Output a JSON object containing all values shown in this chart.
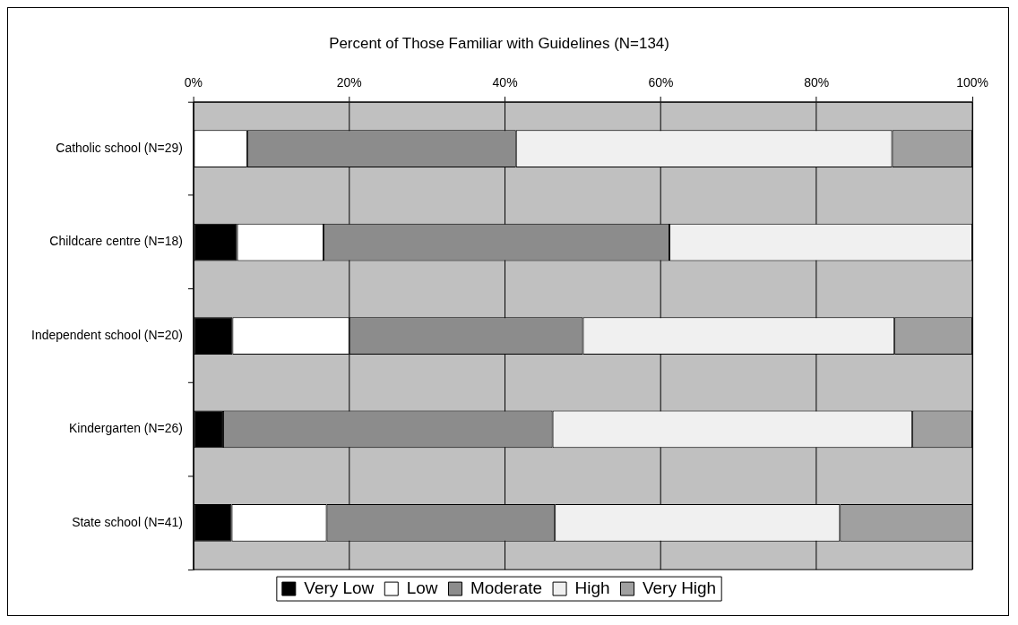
{
  "chart_data": {
    "type": "bar",
    "orientation": "horizontal",
    "stacked": true,
    "title": "Percent of Those Familiar with Guidelines (N=134)",
    "categories": [
      "Catholic school (N=29)",
      "Childcare centre (N=18)",
      "Independent school (N=20)",
      "Kindergarten (N=26)",
      "State school (N=41)"
    ],
    "series": [
      {
        "name": "Very Low",
        "color": "#000000",
        "values": [
          0,
          5.6,
          5,
          3.8,
          4.9
        ]
      },
      {
        "name": "Low",
        "color": "#ffffff",
        "values": [
          6.9,
          11.1,
          15,
          0,
          12.2
        ]
      },
      {
        "name": "Moderate",
        "color": "#8c8c8c",
        "values": [
          34.5,
          44.4,
          30,
          42.3,
          29.3
        ]
      },
      {
        "name": "High",
        "color": "#f0f0f0",
        "values": [
          48.3,
          38.9,
          40,
          46.2,
          36.6
        ]
      },
      {
        "name": "Very High",
        "color": "#a0a0a0",
        "values": [
          10.3,
          0,
          10,
          7.7,
          17.1
        ]
      }
    ],
    "xlim": [
      0,
      100
    ],
    "xticks": [
      {
        "value": 0,
        "label": "0%"
      },
      {
        "value": 20,
        "label": "20%"
      },
      {
        "value": 40,
        "label": "40%"
      },
      {
        "value": 60,
        "label": "60%"
      },
      {
        "value": 80,
        "label": "80%"
      },
      {
        "value": 100,
        "label": "100%"
      }
    ],
    "grid": "x",
    "legend": "bottom"
  }
}
